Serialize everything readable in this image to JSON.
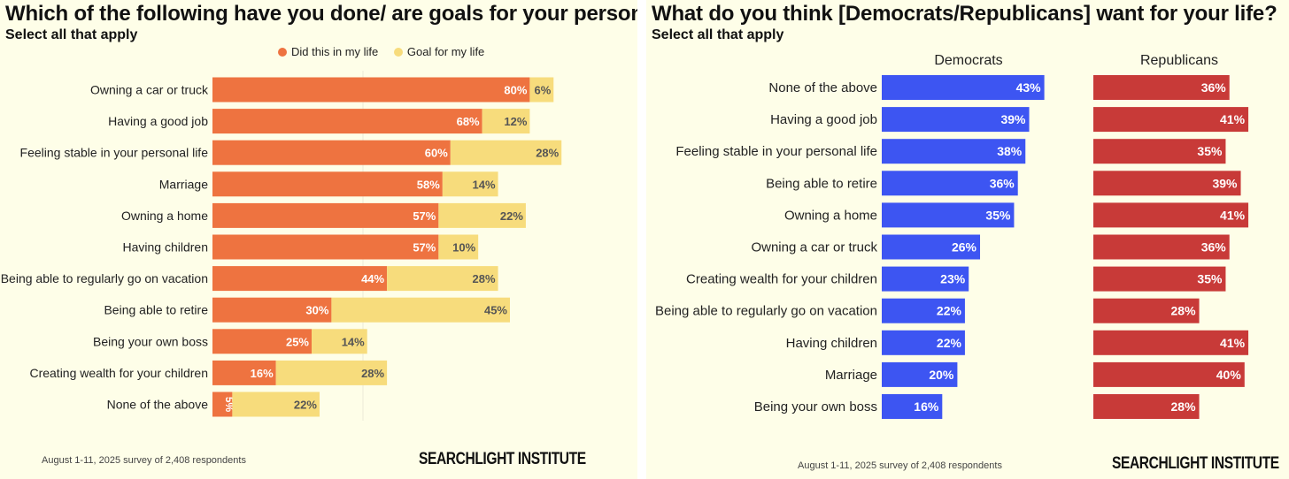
{
  "chart_data": [
    {
      "type": "bar",
      "orientation": "horizontal",
      "stacked": true,
      "title": "Which of the following have you done/ are goals for your personal life?",
      "subtitle": "Select all that apply",
      "legend_position": "top",
      "categories": [
        "Owning a car or truck",
        "Having a good job",
        "Feeling stable in your personal life",
        "Marriage",
        "Owning a home",
        "Having children",
        "Being able to regularly go on vacation",
        "Being able to retire",
        "Being your own boss",
        "Creating wealth for your children",
        "None of the above"
      ],
      "series": [
        {
          "name": "Did this in my life",
          "color": "#ee7340",
          "values": [
            80,
            68,
            60,
            58,
            57,
            57,
            44,
            30,
            25,
            16,
            5
          ]
        },
        {
          "name": "Goal for my life",
          "color": "#f7dc7c",
          "values": [
            6,
            12,
            28,
            14,
            22,
            10,
            28,
            45,
            14,
            28,
            22
          ]
        }
      ],
      "xlim": [
        0,
        100
      ],
      "footer": "August 1-11, 2025 survey of 2,408 respondents",
      "brand": "SEARCHLIGHT INSTITUTE"
    },
    {
      "type": "bar",
      "orientation": "horizontal",
      "title": "What do you think [Democrats/Republicans] want for your life?",
      "subtitle": "Select all that apply",
      "categories": [
        "None of the above",
        "Having a good job",
        "Feeling stable in your personal life",
        "Being able to retire",
        "Owning a home",
        "Owning a car or truck",
        "Creating wealth for your children",
        "Being able to regularly go on vacation",
        "Having children",
        "Marriage",
        "Being your own boss"
      ],
      "series": [
        {
          "name": "Democrats",
          "color": "#3d55f2",
          "values": [
            43,
            39,
            38,
            36,
            35,
            26,
            23,
            22,
            22,
            20,
            16
          ]
        },
        {
          "name": "Republicans",
          "color": "#c83a38",
          "values": [
            36,
            41,
            35,
            39,
            41,
            36,
            35,
            28,
            41,
            40,
            28
          ]
        }
      ],
      "xlim": [
        0,
        45
      ],
      "footer": "August 1-11, 2025 survey of 2,408 respondents",
      "brand": "SEARCHLIGHT INSTITUTE"
    }
  ]
}
